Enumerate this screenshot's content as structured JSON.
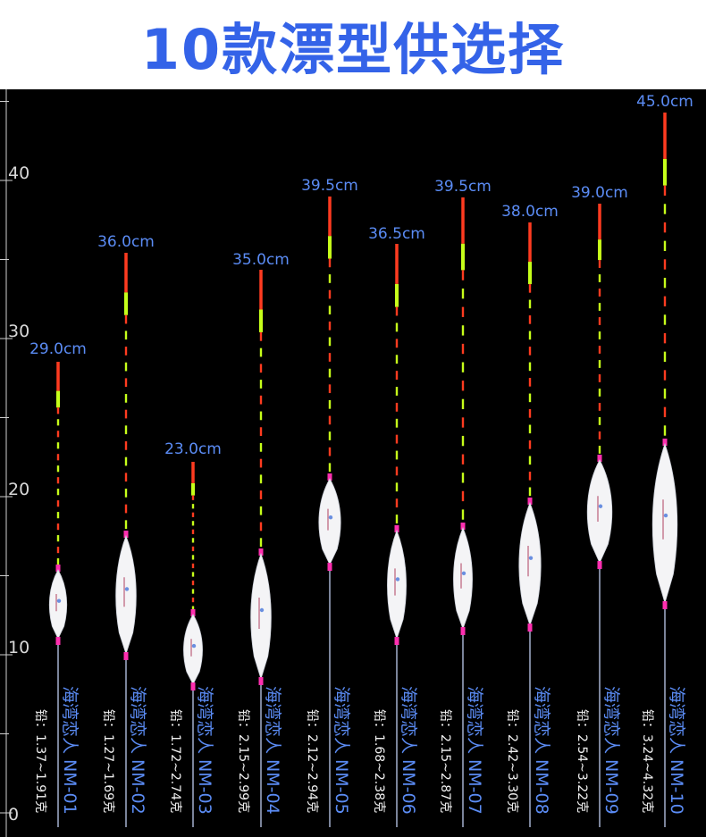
{
  "title": "10款漂型供选择",
  "axis": {
    "ticks": [
      "40",
      "30",
      "20",
      "10",
      "0"
    ]
  },
  "colors": {
    "title": "#3463e8",
    "label": "#5b8cf5",
    "background": "#000000",
    "tip_red": "#ff3b20",
    "tip_green": "#c6ff1a",
    "body": "#f4f4f6",
    "pink": "#ff2fb0"
  },
  "floats": [
    {
      "length": "29.0cm",
      "name": "海湾恋人 NM-01",
      "lead": "铅：1.37~1.91克"
    },
    {
      "length": "36.0cm",
      "name": "海湾恋人 NM-02",
      "lead": "铅：1.27~1.69克"
    },
    {
      "length": "23.0cm",
      "name": "海湾恋人 NM-03",
      "lead": "铅：1.72~2.74克"
    },
    {
      "length": "35.0cm",
      "name": "海湾恋人 NM-04",
      "lead": "铅：2.15~2.99克"
    },
    {
      "length": "39.5cm",
      "name": "海湾恋人 NM-05",
      "lead": "铅：2.12~2.94克"
    },
    {
      "length": "36.5cm",
      "name": "海湾恋人 NM-06",
      "lead": "铅：1.68~2.38克"
    },
    {
      "length": "39.5cm",
      "name": "海湾恋人 NM-07",
      "lead": "铅：2.15~2.87克"
    },
    {
      "length": "38.0cm",
      "name": "海湾恋人 NM-08",
      "lead": "铅：2.42~3.30克"
    },
    {
      "length": "39.0cm",
      "name": "海湾恋人 NM-09",
      "lead": "铅：2.54~3.22克"
    },
    {
      "length": "45.0cm",
      "name": "海湾恋人 NM-10",
      "lead": "铅：3.24~4.32克"
    }
  ]
}
